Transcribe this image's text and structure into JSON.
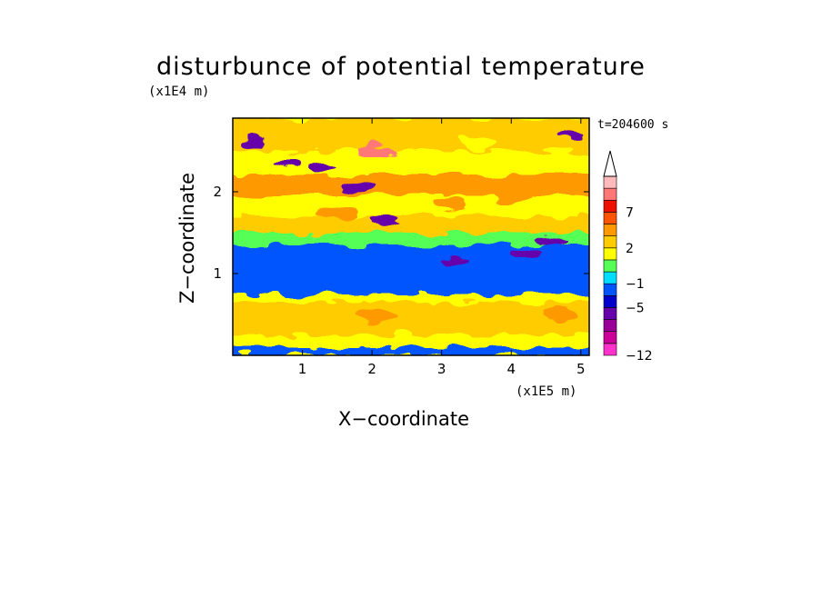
{
  "chart_data": {
    "type": "heatmap",
    "title": "disturbunce of potential temperature",
    "xlabel": "X−coordinate",
    "ylabel": "Z−coordinate",
    "x_unit_label": "(x1E5 m)",
    "y_unit_label": "(x1E4 m)",
    "time_label": "t=204600 s",
    "xlim": [
      0,
      5.12
    ],
    "ylim": [
      0,
      2.9
    ],
    "x_ticks": [
      1,
      2,
      3,
      4,
      5
    ],
    "x_tick_labels": [
      "1",
      "2",
      "3",
      "4",
      "5"
    ],
    "y_ticks": [
      1,
      2
    ],
    "y_tick_labels": [
      "1",
      "2"
    ],
    "colorbar": {
      "labels": [
        {
          "value": 7,
          "text": "7"
        },
        {
          "value": 2,
          "text": "2"
        },
        {
          "value": -1,
          "text": "−1"
        },
        {
          "value": -5,
          "text": "−5"
        },
        {
          "value": -12,
          "text": "−12"
        }
      ],
      "extend": "max",
      "colors": [
        "#ff33cc",
        "#cc0099",
        "#990099",
        "#6600aa",
        "#0000cc",
        "#0055ff",
        "#00ddff",
        "#55ff55",
        "#ffff00",
        "#ffcc00",
        "#ff9900",
        "#ff5500",
        "#ee1100",
        "#ff7777",
        "#ffbbbb"
      ],
      "arrow_color": "#ffffff"
    },
    "field_bands": [
      {
        "z": [
          0.0,
          0.1
        ],
        "value": -1.5
      },
      {
        "z": [
          0.1,
          0.25
        ],
        "value": 1.0
      },
      {
        "z": [
          0.25,
          0.45
        ],
        "value": 2.5
      },
      {
        "z": [
          0.45,
          0.65
        ],
        "value": 2.8
      },
      {
        "z": [
          0.65,
          0.75
        ],
        "value": 1.0
      },
      {
        "z": [
          0.75,
          1.35
        ],
        "value": -1.8
      },
      {
        "z": [
          1.35,
          1.5
        ],
        "value": 0.5
      },
      {
        "z": [
          1.5,
          1.7
        ],
        "value": 2.5
      },
      {
        "z": [
          1.7,
          1.95
        ],
        "value": 1.5
      },
      {
        "z": [
          1.95,
          2.2
        ],
        "value": 3.0
      },
      {
        "z": [
          2.2,
          2.5
        ],
        "value": 1.5
      },
      {
        "z": [
          2.5,
          2.9
        ],
        "value": 2.0
      }
    ],
    "features": [
      {
        "x": 2.05,
        "z": 2.5,
        "value": 8
      },
      {
        "x": 0.3,
        "z": 2.6,
        "value": -6
      },
      {
        "x": 0.8,
        "z": 2.35,
        "value": -6
      },
      {
        "x": 1.3,
        "z": 2.3,
        "value": -6
      },
      {
        "x": 1.8,
        "z": 2.05,
        "value": -6
      },
      {
        "x": 2.2,
        "z": 1.65,
        "value": -6
      },
      {
        "x": 3.2,
        "z": 1.15,
        "value": -6
      },
      {
        "x": 4.2,
        "z": 1.25,
        "value": -6
      },
      {
        "x": 4.6,
        "z": 1.4,
        "value": -6
      },
      {
        "x": 4.9,
        "z": 2.7,
        "value": -6
      },
      {
        "x": 0.1,
        "z": 2.1,
        "value": 4
      },
      {
        "x": 1.5,
        "z": 1.75,
        "value": 4
      },
      {
        "x": 3.1,
        "z": 1.85,
        "value": 4
      },
      {
        "x": 4.0,
        "z": 1.95,
        "value": 4
      },
      {
        "x": 2.05,
        "z": 0.5,
        "value": 3.5
      },
      {
        "x": 4.7,
        "z": 0.5,
        "value": 3.5
      },
      {
        "x": 3.55,
        "z": 2.6,
        "value": 1.0
      }
    ]
  }
}
